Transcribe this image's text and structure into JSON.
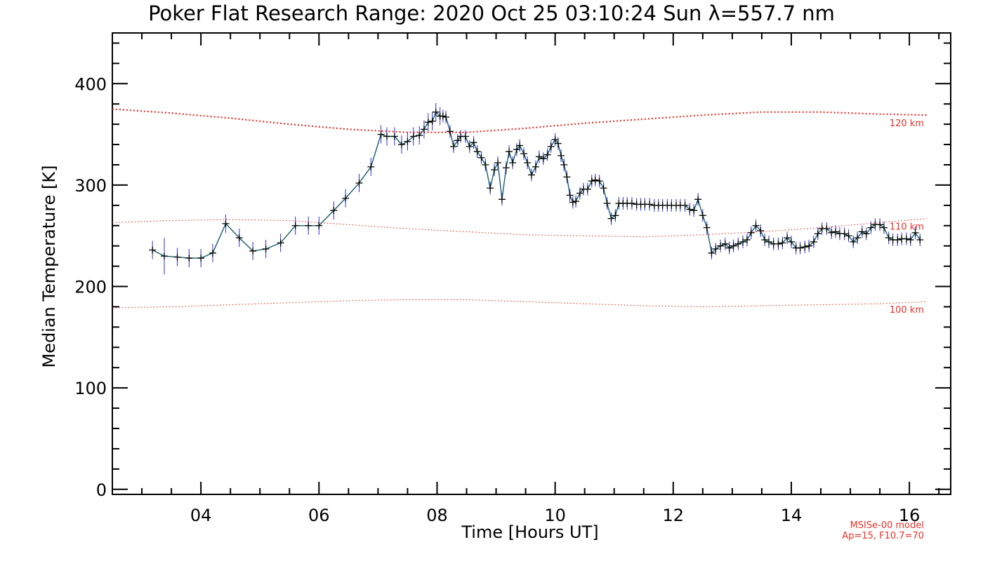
{
  "chart_data": {
    "type": "line",
    "title": "Poker Flat Research Range: 2020 Oct 25 03:10:24 Sun λ=557.7 nm",
    "xlabel": "Time [Hours UT]",
    "ylabel": "Median Temperature [K]",
    "xlim": [
      2.5,
      16.7
    ],
    "ylim": [
      -5,
      450
    ],
    "xticks": [
      4,
      6,
      8,
      10,
      12,
      14,
      16
    ],
    "xtick_labels": [
      "04",
      "06",
      "08",
      "10",
      "12",
      "14",
      "16"
    ],
    "yticks": [
      0,
      100,
      200,
      300,
      400
    ],
    "ytick_labels": [
      "0",
      "100",
      "200",
      "300",
      "400"
    ],
    "grid": false,
    "series": [
      {
        "x": [
          3.18,
          3.38,
          3.6,
          3.8,
          4.0,
          4.2,
          4.42,
          4.65,
          4.88,
          5.1,
          5.35,
          5.6,
          5.82,
          6.0,
          6.25,
          6.45,
          6.68,
          6.88,
          7.05,
          7.15,
          7.28,
          7.4,
          7.5,
          7.6,
          7.7,
          7.78,
          7.85,
          7.92,
          7.98,
          8.05,
          8.1,
          8.15,
          8.22,
          8.28,
          8.35,
          8.4,
          8.48,
          8.55,
          8.62,
          8.68,
          8.75,
          8.82,
          8.9,
          8.97,
          9.03,
          9.1,
          9.17,
          9.22,
          9.28,
          9.35,
          9.4,
          9.47,
          9.53,
          9.6,
          9.67,
          9.73,
          9.8,
          9.87,
          9.93,
          10.0,
          10.05,
          10.1,
          10.15,
          10.2,
          10.25,
          10.3,
          10.35,
          10.42,
          10.48,
          10.55,
          10.62,
          10.68,
          10.75,
          10.82,
          10.88,
          10.95,
          11.02,
          11.08,
          11.15,
          11.22,
          11.3,
          11.38,
          11.45,
          11.52,
          11.6,
          11.68,
          11.75,
          11.82,
          11.9,
          11.97,
          12.05,
          12.12,
          12.2,
          12.28,
          12.35,
          12.42,
          12.5,
          12.57,
          12.65,
          12.72,
          12.8,
          12.88,
          12.95,
          13.02,
          13.1,
          13.18,
          13.25,
          13.32,
          13.4,
          13.48,
          13.55,
          13.62,
          13.7,
          13.78,
          13.85,
          13.93,
          14.0,
          14.08,
          14.15,
          14.23,
          14.3,
          14.38,
          14.45,
          14.52,
          14.6,
          14.68,
          14.75,
          14.82,
          14.9,
          14.97,
          15.05,
          15.12,
          15.2,
          15.27,
          15.35,
          15.42,
          15.5,
          15.57,
          15.65,
          15.72,
          15.8,
          15.87,
          15.95,
          16.02,
          16.1,
          16.18
        ],
        "values": [
          236,
          230,
          229,
          228,
          228,
          233,
          262,
          248,
          235,
          237,
          243,
          260,
          260,
          260,
          275,
          287,
          302,
          318,
          350,
          348,
          348,
          340,
          343,
          348,
          349,
          355,
          362,
          363,
          372,
          368,
          368,
          367,
          353,
          338,
          344,
          348,
          348,
          338,
          342,
          333,
          327,
          320,
          297,
          315,
          322,
          286,
          317,
          333,
          322,
          335,
          339,
          331,
          322,
          310,
          318,
          328,
          326,
          330,
          338,
          345,
          341,
          329,
          320,
          308,
          290,
          283,
          284,
          292,
          296,
          296,
          304,
          305,
          304,
          297,
          282,
          267,
          270,
          282,
          282,
          282,
          282,
          281,
          281,
          281,
          281,
          280,
          280,
          280,
          280,
          280,
          280,
          280,
          280,
          276,
          275,
          286,
          270,
          258,
          233,
          237,
          240,
          242,
          238,
          240,
          242,
          244,
          246,
          253,
          260,
          255,
          246,
          244,
          242,
          242,
          243,
          248,
          244,
          238,
          238,
          239,
          240,
          244,
          252,
          257,
          257,
          253,
          254,
          252,
          252,
          250,
          244,
          248,
          254,
          252,
          258,
          261,
          261,
          258,
          248,
          246,
          246,
          247,
          247,
          246,
          253,
          246
        ]
      },
      {
        "name": "120 km",
        "x": [
          2.5,
          3.5,
          4.5,
          5.5,
          6.5,
          7.5,
          8.5,
          9.5,
          10.5,
          11.5,
          12.5,
          13.5,
          14.5,
          15.5,
          16.3
        ],
        "values": [
          375,
          371,
          366,
          360,
          355,
          352,
          352,
          356,
          361,
          365,
          369,
          372,
          372,
          370,
          369
        ]
      },
      {
        "name": "110 km",
        "x": [
          2.5,
          3.5,
          4.5,
          5.5,
          6.5,
          7.5,
          8.5,
          9.5,
          10.5,
          11.5,
          12.5,
          13.5,
          14.5,
          15.5,
          16.3
        ],
        "values": [
          263,
          265,
          266,
          265,
          261,
          257,
          254,
          251,
          250,
          249,
          251,
          254,
          258,
          263,
          267
        ]
      },
      {
        "name": "100 km",
        "x": [
          2.5,
          3.5,
          4.5,
          5.5,
          6.5,
          7.5,
          8.5,
          9.5,
          10.5,
          11.5,
          12.5,
          13.5,
          14.5,
          15.5,
          16.3
        ],
        "values": [
          179,
          180,
          182,
          184,
          186,
          187,
          187,
          185,
          183,
          181,
          180,
          181,
          182,
          183,
          185
        ]
      }
    ],
    "annotations": [
      "120 km",
      "110 km",
      "100 km",
      "MSISe-00 model",
      "Ap=15, F10.7=70"
    ],
    "colors": {
      "data_line": "#1a5e6b",
      "data_marker": "#000000",
      "error_bar": "#2d2dd6",
      "model": "#e8302a"
    }
  }
}
